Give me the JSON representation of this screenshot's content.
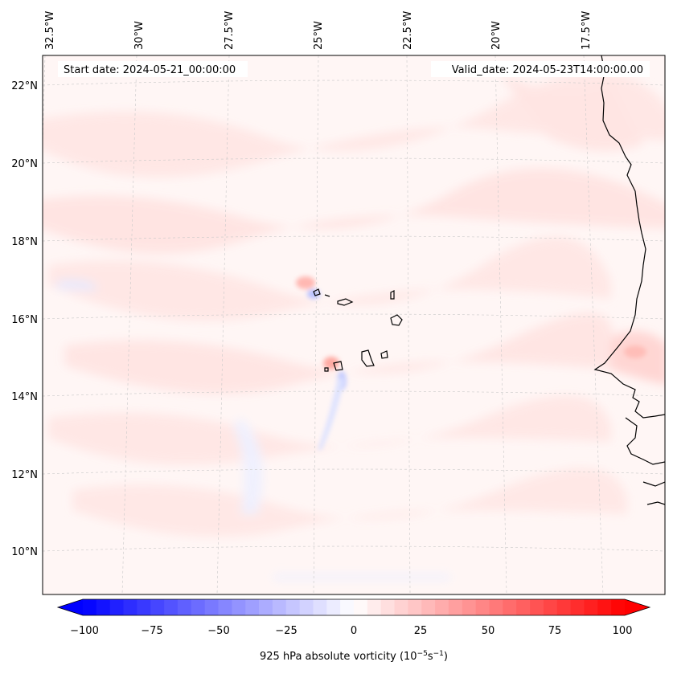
{
  "header": {
    "start_date": "Start date: 2024-05-21_00:00:00",
    "valid_date": "Valid_date: 2024-05-23T14:00:00.00"
  },
  "map": {
    "lon_labels": [
      "32.5°W",
      "30°W",
      "27.5°W",
      "25°W",
      "22.5°W",
      "20°W",
      "17.5°W"
    ],
    "lat_labels": [
      "22°N",
      "20°N",
      "18°N",
      "16°N",
      "14°N",
      "12°N",
      "10°N"
    ],
    "gridlines": "dashed"
  },
  "colorbar": {
    "ticks": [
      "−100",
      "−75",
      "−50",
      "−25",
      "0",
      "25",
      "50",
      "75",
      "100"
    ],
    "range": [
      -100,
      100
    ],
    "colormap": "bwr",
    "color_low": "#0000ff",
    "color_mid": "#ffffff",
    "color_high": "#ff0000",
    "label_main": "925 hPa absolute vorticity (10",
    "label_sup1": "−5",
    "label_mid": "s",
    "label_sup2": "−1",
    "label_end": ")"
  }
}
